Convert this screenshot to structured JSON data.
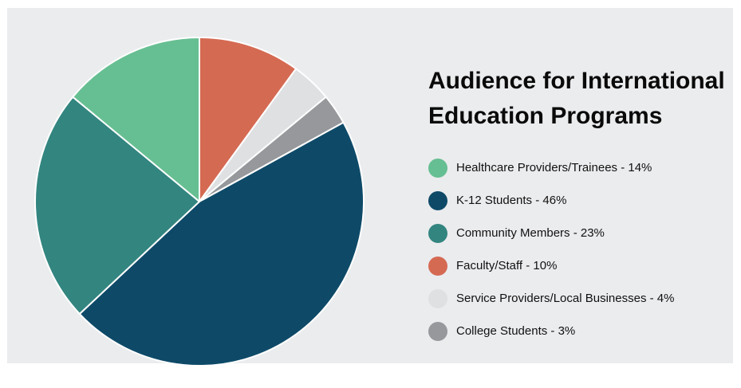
{
  "chart_data": {
    "type": "pie",
    "title": "Audience for International Education Programs",
    "title_lines": [
      "Audience for International",
      "Education Programs"
    ],
    "legend_position": "right",
    "slices": [
      {
        "label": "Healthcare Providers/Trainees - 14%",
        "name": "Healthcare Providers/Trainees",
        "value": 14,
        "color": "#66bf92"
      },
      {
        "label": "K-12 Students - 46%",
        "name": "K-12 Students",
        "value": 46,
        "color": "#0e4a68"
      },
      {
        "label": "Community Members - 23%",
        "name": "Community Members",
        "value": 23,
        "color": "#338580"
      },
      {
        "label": "Faculty/Staff - 10%",
        "name": "Faculty/Staff",
        "value": 10,
        "color": "#d56a53"
      },
      {
        "label": "Service Providers/Local Businesses - 4%",
        "name": "Service Providers/Local Businesses",
        "value": 4,
        "color": "#dfe0e2"
      },
      {
        "label": "College Students - 3%",
        "name": "College Students",
        "value": 3,
        "color": "#96989b"
      }
    ],
    "draw_order": [
      "Faculty/Staff",
      "Service Providers/Local Businesses",
      "College Students",
      "K-12 Students",
      "Community Members",
      "Healthcare Providers/Trainees"
    ],
    "direction": "clockwise",
    "start": "12 o'clock"
  },
  "colors": {
    "background": "#ebecee",
    "slice_border": "#ffffff",
    "title": "#0a0a0a"
  }
}
